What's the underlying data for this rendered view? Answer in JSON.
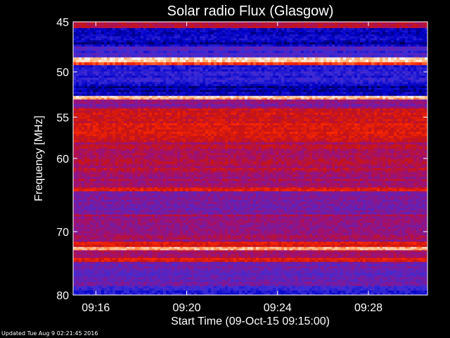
{
  "chart_data": {
    "type": "heatmap",
    "title": "Solar radio Flux (Glasgow)",
    "ylabel": "Frequency [MHz]",
    "xlabel": "Start Time (09-Oct-15 09:15:00)",
    "yaxis": {
      "scale": "log",
      "range": [
        45,
        80
      ],
      "ticks": [
        45,
        50,
        55,
        60,
        70,
        80
      ]
    },
    "xaxis": {
      "range_minutes": [
        0,
        15.6
      ],
      "ticks": [
        "09:16",
        "09:20",
        "09:24",
        "09:28"
      ],
      "tick_minutes": [
        1,
        5,
        9,
        13
      ]
    },
    "colormap": [
      "#00003c",
      "#0000c8",
      "#3a2cd8",
      "#6a1fb0",
      "#a01070",
      "#c81414",
      "#ff2a00",
      "#ffb070",
      "#ffffff"
    ],
    "bands": [
      {
        "from": 45.0,
        "to": 45.6,
        "level": 0.55
      },
      {
        "from": 45.6,
        "to": 47.4,
        "level": 0.12
      },
      {
        "from": 47.4,
        "to": 48.5,
        "level": 0.28
      },
      {
        "from": 48.5,
        "to": 49.0,
        "level": 0.96
      },
      {
        "from": 49.0,
        "to": 49.3,
        "level": 0.75
      },
      {
        "from": 49.3,
        "to": 51.3,
        "level": 0.22
      },
      {
        "from": 51.3,
        "to": 52.6,
        "level": 0.12
      },
      {
        "from": 52.6,
        "to": 53.0,
        "level": 0.9
      },
      {
        "from": 53.0,
        "to": 54.0,
        "level": 0.45
      },
      {
        "from": 54.0,
        "to": 58.0,
        "level": 0.66
      },
      {
        "from": 58.0,
        "to": 61.5,
        "level": 0.55
      },
      {
        "from": 61.5,
        "to": 63.8,
        "level": 0.5
      },
      {
        "from": 63.8,
        "to": 64.3,
        "level": 0.7
      },
      {
        "from": 64.3,
        "to": 67.5,
        "level": 0.42
      },
      {
        "from": 67.5,
        "to": 71.5,
        "level": 0.5
      },
      {
        "from": 71.5,
        "to": 72.3,
        "level": 0.66
      },
      {
        "from": 72.3,
        "to": 72.8,
        "level": 0.92
      },
      {
        "from": 72.8,
        "to": 74.0,
        "level": 0.5
      },
      {
        "from": 74.0,
        "to": 74.6,
        "level": 0.7
      },
      {
        "from": 74.6,
        "to": 78.5,
        "level": 0.36
      },
      {
        "from": 78.5,
        "to": 80.0,
        "level": 0.22
      }
    ]
  },
  "footer": "Updated Tue Aug  9 02:21:45 2016"
}
